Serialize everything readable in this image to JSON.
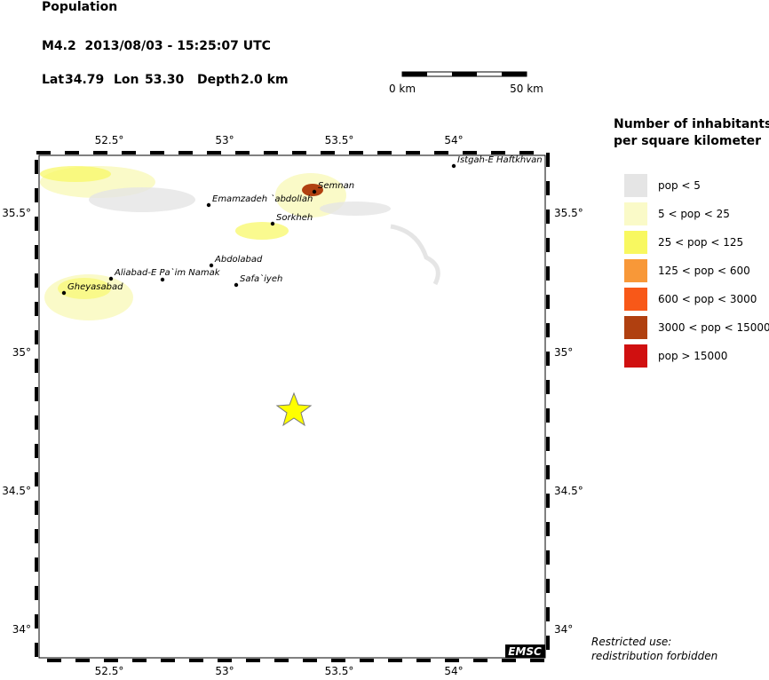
{
  "header": {
    "title": "Population",
    "event": "M4.2  2013/08/03 - 15:25:07 UTC",
    "lat_label": "Lat",
    "lat": "34.79",
    "lon_label": "Lon",
    "lon": "53.30",
    "depth_label": "Depth",
    "depth": "2.0 km"
  },
  "scale_bar": {
    "start": "0 km",
    "end": "50 km"
  },
  "map": {
    "x_ticks": [
      "52.5°",
      "53°",
      "53.5°",
      "54°"
    ],
    "y_ticks": [
      "35.5°",
      "35°",
      "34.5°",
      "34°"
    ],
    "places": [
      "Istgah-E Haftkhvan",
      "Semnan",
      "Emamzadeh `abdollah",
      "Sorkheh",
      "Abdolabad",
      "Aliabad-E Pa`im Namak",
      "Safa`iyeh",
      "Gheyasabad"
    ],
    "credit": "EMSC"
  },
  "legend": {
    "title_lines": [
      "Number of inhabitants",
      "per square kilometer"
    ],
    "items": [
      {
        "label": "pop < 5",
        "color": "#e5e5e5"
      },
      {
        "label": "5 < pop < 25",
        "color": "#fafac8"
      },
      {
        "label": "25 < pop < 125",
        "color": "#f8f860"
      },
      {
        "label": "125 < pop < 600",
        "color": "#f89838"
      },
      {
        "label": "600 < pop < 3000",
        "color": "#f85818"
      },
      {
        "label": "3000 < pop < 15000",
        "color": "#b04010"
      },
      {
        "label": "pop > 15000",
        "color": "#d01010"
      }
    ]
  },
  "notice": [
    "Restricted use:",
    "redistribution forbidden"
  ]
}
